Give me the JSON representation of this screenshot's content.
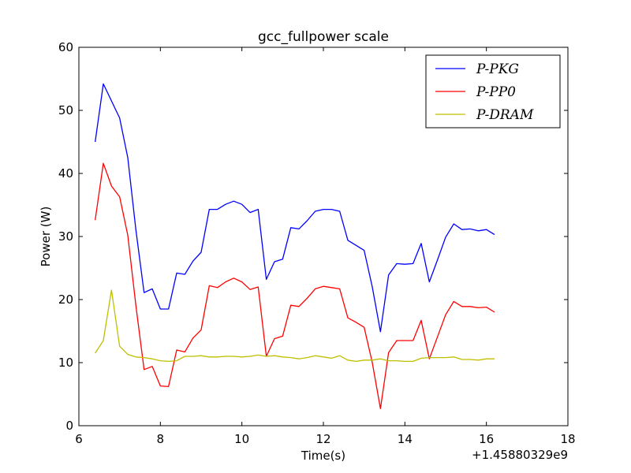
{
  "chart_data": {
    "type": "line",
    "title": "gcc_fullpower scale",
    "xlabel": "Time(s)",
    "ylabel": "Power (W)",
    "x_offset_label": "+1.45880329e9",
    "xlim": [
      6,
      18
    ],
    "ylim": [
      0,
      60
    ],
    "xticks": [
      "6",
      "8",
      "10",
      "12",
      "14",
      "16",
      "18"
    ],
    "yticks": [
      "0",
      "10",
      "20",
      "30",
      "40",
      "50",
      "60"
    ],
    "grid": false,
    "legend_position": "top-right",
    "x": [
      6.4,
      6.6,
      6.8,
      7.0,
      7.2,
      7.4,
      7.6,
      7.8,
      8.0,
      8.2,
      8.4,
      8.6,
      8.8,
      9.0,
      9.2,
      9.4,
      9.6,
      9.8,
      10.0,
      10.2,
      10.4,
      10.6,
      10.8,
      11.0,
      11.2,
      11.4,
      11.6,
      11.8,
      12.0,
      12.2,
      12.4,
      12.6,
      12.8,
      13.0,
      13.2,
      13.4,
      13.6,
      13.8,
      14.0,
      14.2,
      14.4,
      14.6,
      14.8,
      15.0,
      15.2,
      15.4,
      15.6,
      15.8,
      16.0,
      16.2
    ],
    "series": [
      {
        "name": "P-PKG",
        "color": "#0000ff",
        "values": [
          45.0,
          54.2,
          51.5,
          48.8,
          42.5,
          31.0,
          21.1,
          21.7,
          18.5,
          18.5,
          24.2,
          24.0,
          26.1,
          27.5,
          34.3,
          34.3,
          35.1,
          35.6,
          35.1,
          33.8,
          34.3,
          23.2,
          26.0,
          26.4,
          31.4,
          31.2,
          32.5,
          34.0,
          34.3,
          34.3,
          34.0,
          29.4,
          28.6,
          27.8,
          22.0,
          14.9,
          23.9,
          25.7,
          25.6,
          25.7,
          28.9,
          22.8,
          26.3,
          29.9,
          32.0,
          31.1,
          31.2,
          30.9,
          31.1,
          30.3
        ]
      },
      {
        "name": "P-PP0",
        "color": "#ff0000",
        "values": [
          32.6,
          41.6,
          38.0,
          36.3,
          30.2,
          19.0,
          8.9,
          9.4,
          6.3,
          6.2,
          12.0,
          11.7,
          13.9,
          15.2,
          22.2,
          21.9,
          22.8,
          23.4,
          22.8,
          21.6,
          22.0,
          11.0,
          13.8,
          14.2,
          19.1,
          18.9,
          20.2,
          21.7,
          22.1,
          21.9,
          21.7,
          17.1,
          16.4,
          15.6,
          10.0,
          2.7,
          11.6,
          13.5,
          13.5,
          13.5,
          16.7,
          10.6,
          14.1,
          17.6,
          19.7,
          18.9,
          18.9,
          18.7,
          18.8,
          18.0
        ]
      },
      {
        "name": "P-DRAM",
        "color": "#bfbf00",
        "values": [
          11.5,
          13.5,
          21.5,
          12.6,
          11.3,
          10.9,
          10.8,
          10.6,
          10.3,
          10.2,
          10.3,
          11.0,
          11.0,
          11.1,
          10.9,
          10.9,
          11.0,
          11.0,
          10.9,
          11.0,
          11.2,
          11.0,
          11.1,
          10.9,
          10.8,
          10.6,
          10.8,
          11.1,
          10.9,
          10.7,
          11.1,
          10.4,
          10.2,
          10.4,
          10.4,
          10.6,
          10.3,
          10.3,
          10.2,
          10.2,
          10.7,
          10.8,
          10.8,
          10.8,
          10.9,
          10.5,
          10.5,
          10.4,
          10.6,
          10.6
        ]
      }
    ]
  }
}
